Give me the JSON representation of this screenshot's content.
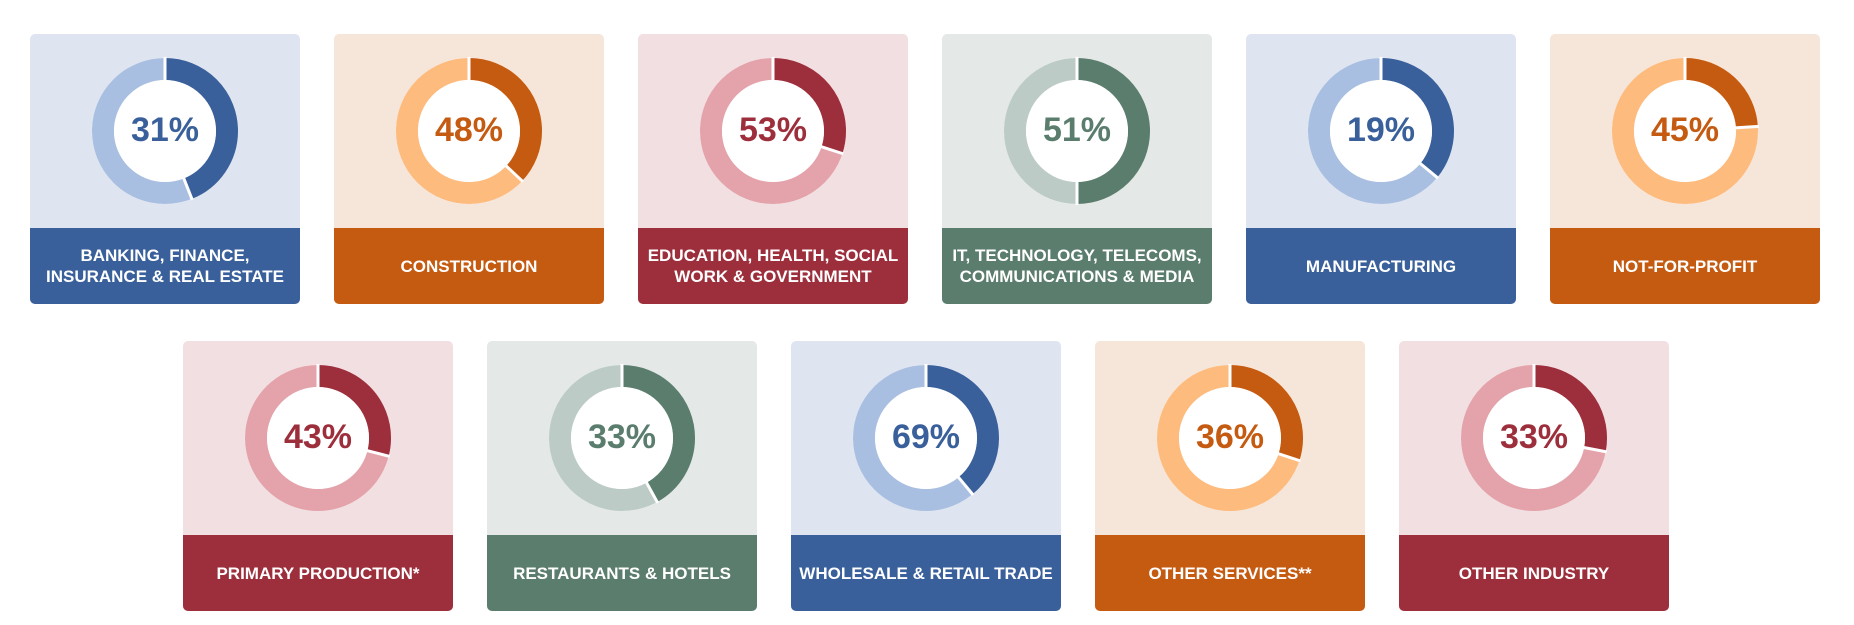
{
  "chart_data": {
    "type": "pie",
    "style": "donut",
    "themes": {
      "blue": {
        "dark": "#3a609b",
        "light": "#a9bfe1",
        "bg": "#dfe5f0"
      },
      "orange": {
        "dark": "#c55a11",
        "light": "#fdbb7e",
        "bg": "#f6e5d9"
      },
      "red": {
        "dark": "#9d2f3c",
        "light": "#e4a2aa",
        "bg": "#f1dfe1"
      },
      "green": {
        "dark": "#5b7d6e",
        "light": "#bccbc5",
        "bg": "#e4e8e6"
      }
    },
    "items": [
      {
        "label": "Banking, Finance, Insurance & Real Estate",
        "value": 31,
        "display": "31%",
        "arc_fraction": 0.44,
        "theme": "blue"
      },
      {
        "label": "Construction",
        "value": 48,
        "display": "48%",
        "arc_fraction": 0.37,
        "theme": "orange"
      },
      {
        "label": "Education, Health, Social Work & Government",
        "value": 53,
        "display": "53%",
        "arc_fraction": 0.3,
        "theme": "red"
      },
      {
        "label": "IT, Technology, Telecoms, Communications & Media",
        "value": 51,
        "display": "51%",
        "arc_fraction": 0.5,
        "theme": "green"
      },
      {
        "label": "Manufacturing",
        "value": 19,
        "display": "19%",
        "arc_fraction": 0.36,
        "theme": "blue"
      },
      {
        "label": "Not-for-profit",
        "value": 45,
        "display": "45%",
        "arc_fraction": 0.24,
        "theme": "orange"
      },
      {
        "label": "Primary Production*",
        "value": 43,
        "display": "43%",
        "arc_fraction": 0.29,
        "theme": "red"
      },
      {
        "label": "Restaurants & Hotels",
        "value": 33,
        "display": "33%",
        "arc_fraction": 0.42,
        "theme": "green"
      },
      {
        "label": "Wholesale & Retail Trade",
        "value": 69,
        "display": "69%",
        "arc_fraction": 0.39,
        "theme": "blue"
      },
      {
        "label": "Other Services**",
        "value": 36,
        "display": "36%",
        "arc_fraction": 0.3,
        "theme": "orange"
      },
      {
        "label": "Other Industry",
        "value": 33,
        "display": "33%",
        "arc_fraction": 0.28,
        "theme": "red"
      }
    ]
  }
}
